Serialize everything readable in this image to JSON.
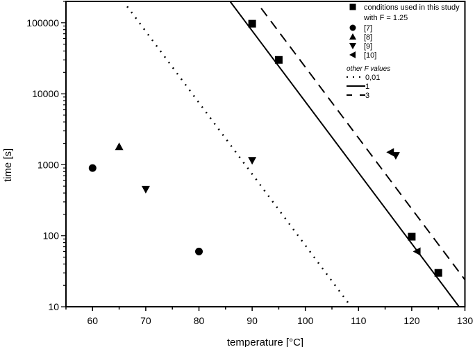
{
  "chart_data": {
    "type": "scatter",
    "title": "",
    "xlabel": "temperature [°C]",
    "ylabel": "time [s]",
    "xlim": [
      55,
      130
    ],
    "ylim": [
      10,
      200000
    ],
    "yscale": "log",
    "xticks": [
      60,
      70,
      80,
      90,
      100,
      110,
      120,
      130
    ],
    "yticks": [
      10,
      100,
      1000,
      10000,
      100000
    ],
    "ytick_labels": [
      "10",
      "100",
      "1000",
      "10000",
      "100000"
    ],
    "legend_position": "top-right",
    "series": [
      {
        "name": "conditions used in this study",
        "name2": "with F = 1.25",
        "marker": "square",
        "points": [
          [
            90,
            97000
          ],
          [
            95,
            30000
          ],
          [
            120,
            97
          ],
          [
            125,
            30
          ]
        ]
      },
      {
        "name": "[7]",
        "marker": "circle",
        "points": [
          [
            60,
            900
          ],
          [
            80,
            60
          ]
        ]
      },
      {
        "name": "[8]",
        "marker": "triangle-up",
        "points": [
          [
            65,
            1800
          ]
        ]
      },
      {
        "name": "[9]",
        "marker": "triangle-down",
        "points": [
          [
            70,
            450
          ],
          [
            90,
            1150
          ],
          [
            117,
            1350
          ]
        ]
      },
      {
        "name": "[10]",
        "marker": "triangle-left",
        "points": [
          [
            116,
            1500
          ],
          [
            121,
            60
          ]
        ]
      }
    ],
    "lines_title": "other F values",
    "lines": [
      {
        "name": "0,01",
        "style": "dotted",
        "points": [
          [
            66.5,
            170000
          ],
          [
            108.6,
            10
          ]
        ]
      },
      {
        "name": "1",
        "style": "solid",
        "points": [
          [
            85.85,
            200000
          ],
          [
            128.9,
            10
          ]
        ]
      },
      {
        "name": "3",
        "style": "dashed",
        "points": [
          [
            91.7,
            160000
          ],
          [
            130,
            24
          ]
        ]
      }
    ]
  }
}
